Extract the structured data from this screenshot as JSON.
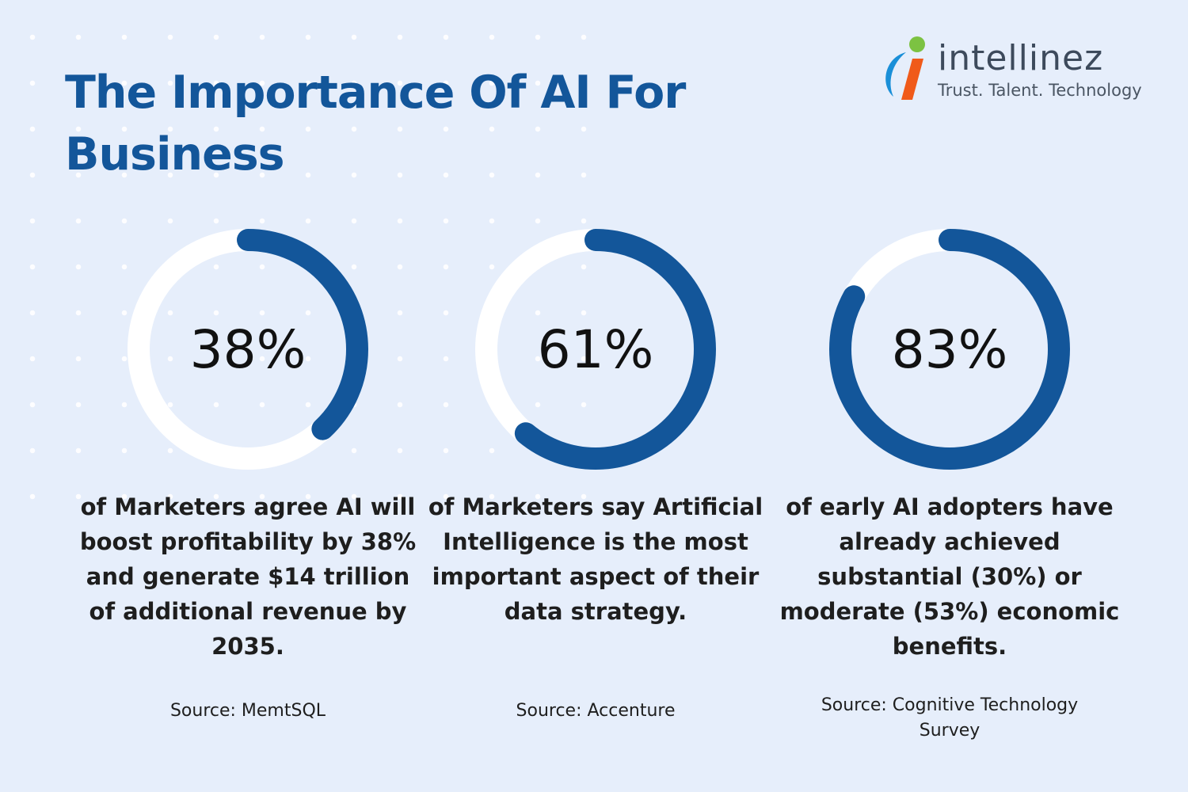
{
  "title": "The Importance Of AI For Business",
  "logo": {
    "wordmark": "intellinez",
    "tagline": "Trust. Talent. Technology",
    "icon": "intellinez-logo-icon"
  },
  "colors": {
    "accent": "#13569a",
    "ring_track": "#ffffff",
    "background": "#e6eefb",
    "logo_blue": "#1a8fd8",
    "logo_orange": "#f05a1a",
    "logo_green": "#7cc242"
  },
  "stats": [
    {
      "percent": "38%",
      "description": "of Marketers agree AI will boost profitability by 38% and generate $14 trillion of additional revenue by 2035.",
      "source": "Source: MemtSQL"
    },
    {
      "percent": "61%",
      "description": "of Marketers say Artificial Intelligence is the most important aspect of their data strategy.",
      "source": "Source: Accenture"
    },
    {
      "percent": "83%",
      "description": "of early AI adopters have already achieved substantial (30%) or moderate (53%) economic benefits.",
      "source": "Source: Cognitive Technology Survey"
    }
  ],
  "chart_data": {
    "type": "donut",
    "categories": [
      "38%",
      "61%",
      "83%"
    ],
    "values": [
      38,
      61,
      83
    ],
    "unit": "%",
    "max": 100
  }
}
